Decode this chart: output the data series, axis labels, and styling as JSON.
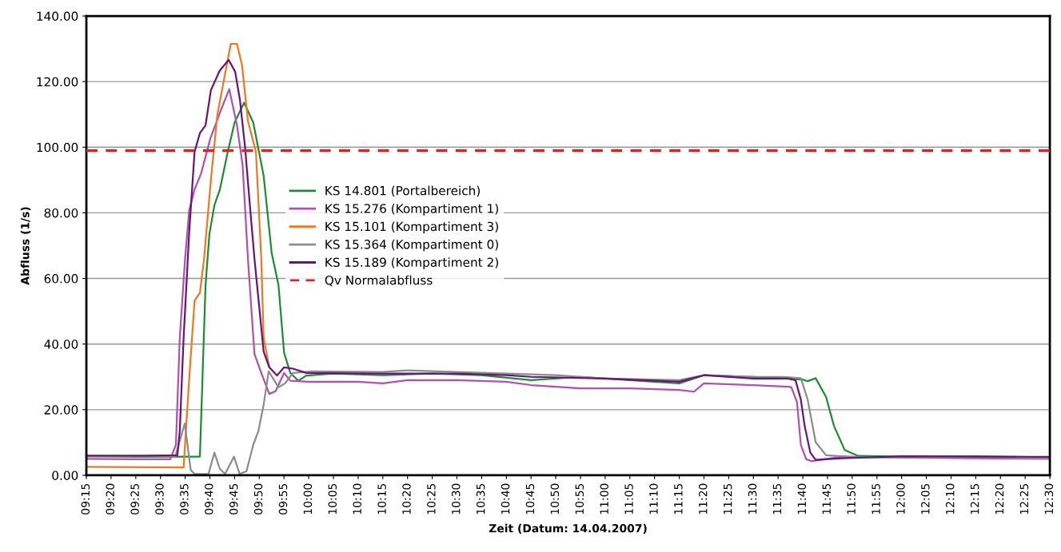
{
  "chart_data": {
    "type": "line",
    "xlabel": "Zeit (Datum: 14.04.2007)",
    "ylabel": "Abfluss (1/s)",
    "xlim": [
      9.25,
      12.5
    ],
    "xticks": [
      {
        "value": 9.25,
        "label": "09:15"
      },
      {
        "value": 9.3333,
        "label": "09:20"
      },
      {
        "value": 9.4167,
        "label": "09:25"
      },
      {
        "value": 9.5,
        "label": "09:30"
      },
      {
        "value": 9.5833,
        "label": "09:35"
      },
      {
        "value": 9.6667,
        "label": "09:40"
      },
      {
        "value": 9.75,
        "label": "09:45"
      },
      {
        "value": 9.8333,
        "label": "09:50"
      },
      {
        "value": 9.9167,
        "label": "09:55"
      },
      {
        "value": 10.0,
        "label": "10:00"
      },
      {
        "value": 10.0833,
        "label": "10:05"
      },
      {
        "value": 10.1667,
        "label": "10:10"
      },
      {
        "value": 10.25,
        "label": "10:15"
      },
      {
        "value": 10.3333,
        "label": "10:20"
      },
      {
        "value": 10.4167,
        "label": "10:25"
      },
      {
        "value": 10.5,
        "label": "10:30"
      },
      {
        "value": 10.5833,
        "label": "10:35"
      },
      {
        "value": 10.6667,
        "label": "10:40"
      },
      {
        "value": 10.75,
        "label": "10:45"
      },
      {
        "value": 10.8333,
        "label": "10:50"
      },
      {
        "value": 10.9167,
        "label": "10:55"
      },
      {
        "value": 11.0,
        "label": "11:00"
      },
      {
        "value": 11.0833,
        "label": "11:05"
      },
      {
        "value": 11.1667,
        "label": "11:10"
      },
      {
        "value": 11.25,
        "label": "11:15"
      },
      {
        "value": 11.3333,
        "label": "11:20"
      },
      {
        "value": 11.4167,
        "label": "11:25"
      },
      {
        "value": 11.5,
        "label": "11:30"
      },
      {
        "value": 11.5833,
        "label": "11:35"
      },
      {
        "value": 11.6667,
        "label": "11:40"
      },
      {
        "value": 11.75,
        "label": "11:45"
      },
      {
        "value": 11.8333,
        "label": "11:50"
      },
      {
        "value": 11.9167,
        "label": "11:55"
      },
      {
        "value": 12.0,
        "label": "12:00"
      },
      {
        "value": 12.0833,
        "label": "12:05"
      },
      {
        "value": 12.1667,
        "label": "12:10"
      },
      {
        "value": 12.25,
        "label": "12:15"
      },
      {
        "value": 12.3333,
        "label": "12:20"
      },
      {
        "value": 12.4167,
        "label": "12:25"
      },
      {
        "value": 12.5,
        "label": "12:30"
      }
    ],
    "ylim": [
      0,
      140
    ],
    "yticks": [
      {
        "value": 0,
        "label": "0.00"
      },
      {
        "value": 20,
        "label": "20.00"
      },
      {
        "value": 40,
        "label": "40.00"
      },
      {
        "value": 60,
        "label": "60.00"
      },
      {
        "value": 80,
        "label": "80.00"
      },
      {
        "value": 100,
        "label": "100.00"
      },
      {
        "value": 120,
        "label": "120.00"
      },
      {
        "value": 140,
        "label": "140.00"
      }
    ],
    "grid": "y",
    "legend": "center",
    "line_style": "solid",
    "series": [
      {
        "name": "KS 14.801 (Portalbereich)",
        "color": "#1e8c32",
        "x": [
          9.25,
          9.417,
          9.617,
          9.633,
          9.652,
          9.665,
          9.682,
          9.7,
          9.727,
          9.75,
          9.782,
          9.813,
          9.848,
          9.875,
          9.898,
          9.917,
          9.938,
          9.965,
          9.992,
          10.083,
          10.25,
          10.417,
          10.583,
          10.75,
          10.917,
          11.083,
          11.25,
          11.333,
          11.5,
          11.617,
          11.665,
          11.683,
          11.71,
          11.745,
          11.772,
          11.808,
          11.853,
          12.0,
          12.25,
          12.5
        ],
        "values": [
          5.8,
          5.6,
          5.7,
          5.7,
          58,
          73.5,
          82.4,
          87,
          98.6,
          107.5,
          113.6,
          107.5,
          91.3,
          67.8,
          58,
          37.3,
          31.2,
          28.8,
          30.4,
          31,
          30.5,
          31,
          30.5,
          29,
          30,
          29,
          28,
          30.5,
          30,
          29.5,
          29.2,
          28.7,
          29.6,
          23.9,
          15,
          7.7,
          5.9,
          5.7,
          5.8,
          5.5
        ]
      },
      {
        "name": "KS 15.276 (Kompartiment 1)",
        "color": "#b050b0",
        "x": [
          9.25,
          9.4,
          9.533,
          9.552,
          9.565,
          9.583,
          9.597,
          9.615,
          9.637,
          9.668,
          9.705,
          9.732,
          9.758,
          9.777,
          9.795,
          9.817,
          9.84,
          9.867,
          9.888,
          9.917,
          9.938,
          10.0,
          10.167,
          10.25,
          10.333,
          10.5,
          10.667,
          10.75,
          10.917,
          11.083,
          11.25,
          11.3,
          11.333,
          11.5,
          11.62,
          11.628,
          11.647,
          11.66,
          11.678,
          11.697,
          11.8,
          12.0,
          12.25,
          12.5
        ],
        "values": [
          5,
          4.9,
          4.9,
          9.3,
          41.8,
          66,
          80.8,
          87.2,
          92,
          102.6,
          111.6,
          117.7,
          106.7,
          94.6,
          66,
          37,
          31.2,
          24.8,
          25.6,
          31.2,
          28.8,
          28.5,
          28.5,
          28,
          29,
          29,
          28.5,
          27.5,
          26.5,
          26.5,
          26,
          25.5,
          28,
          27.5,
          27,
          26.8,
          22.3,
          9.3,
          4.9,
          4.3,
          5.7,
          5.4,
          5.2,
          5
        ]
      },
      {
        "name": "KS 15.101 (Kompartiment 3)",
        "color": "#f07820",
        "x": [
          9.25,
          9.578,
          9.597,
          9.615,
          9.633,
          9.647,
          9.67,
          9.692,
          9.717,
          9.737,
          9.758,
          9.775,
          9.795,
          9.822,
          9.84,
          9.848,
          9.867
        ],
        "values": [
          2.6,
          2.4,
          29.6,
          53.2,
          55.6,
          66,
          90,
          110,
          122,
          131.5,
          131.5,
          125,
          108,
          98.6,
          66,
          41.8,
          32.9
        ]
      },
      {
        "name": "KS 15.364 (Kompartiment 0)",
        "color": "#8c8c8c",
        "x": [
          9.25,
          9.55,
          9.582,
          9.602,
          9.615,
          9.662,
          9.682,
          9.7,
          9.718,
          9.748,
          9.767,
          9.79,
          9.813,
          9.83,
          9.848,
          9.865,
          9.898,
          9.92,
          9.947,
          10.01,
          10.25,
          10.333,
          10.5,
          10.667,
          10.833,
          11.0,
          11.25,
          11.333,
          11.5,
          11.6,
          11.66,
          11.683,
          11.71,
          11.745,
          11.85,
          12.25,
          12.5
        ],
        "values": [
          5.8,
          5.8,
          15.8,
          1.6,
          0.4,
          0.4,
          6.9,
          2,
          0.4,
          5.7,
          0.4,
          1.2,
          9.3,
          13.4,
          21.5,
          31.7,
          26.8,
          28,
          31.2,
          31.7,
          31.5,
          32,
          31.5,
          31,
          30.5,
          29.5,
          29,
          30.5,
          30,
          30,
          29.6,
          23.1,
          10.1,
          6.1,
          5.5,
          5.5,
          5.2
        ]
      },
      {
        "name": "KS 15.189 (Kompartiment 2)",
        "color": "#6a1478",
        "x": [
          9.25,
          9.45,
          9.557,
          9.565,
          9.578,
          9.597,
          9.615,
          9.633,
          9.652,
          9.67,
          9.7,
          9.73,
          9.752,
          9.768,
          9.785,
          9.803,
          9.817,
          9.848,
          9.867,
          9.893,
          9.917,
          9.947,
          9.992,
          10.25,
          10.5,
          10.667,
          10.75,
          11.0,
          11.25,
          11.333,
          11.5,
          11.617,
          11.642,
          11.66,
          11.673,
          11.692,
          11.71,
          11.8,
          12.0,
          12.5
        ],
        "values": [
          6,
          6,
          6.1,
          13.4,
          41.8,
          74.3,
          98.6,
          104.3,
          106.7,
          117.4,
          123.4,
          126.6,
          123,
          114.4,
          100.3,
          80.8,
          66,
          37.7,
          32.9,
          30.4,
          32.9,
          32.5,
          31.2,
          31,
          31,
          30.5,
          30,
          29.5,
          28.5,
          30.5,
          29.5,
          29.5,
          29,
          23.1,
          15,
          6.9,
          4.7,
          5.2,
          5.8,
          5.6
        ]
      }
    ],
    "ref_lines": [
      {
        "axis": "y",
        "value": 99,
        "label": "Qv Normalabfluss",
        "color": "#dd2222",
        "line_style": "dashed"
      }
    ]
  }
}
